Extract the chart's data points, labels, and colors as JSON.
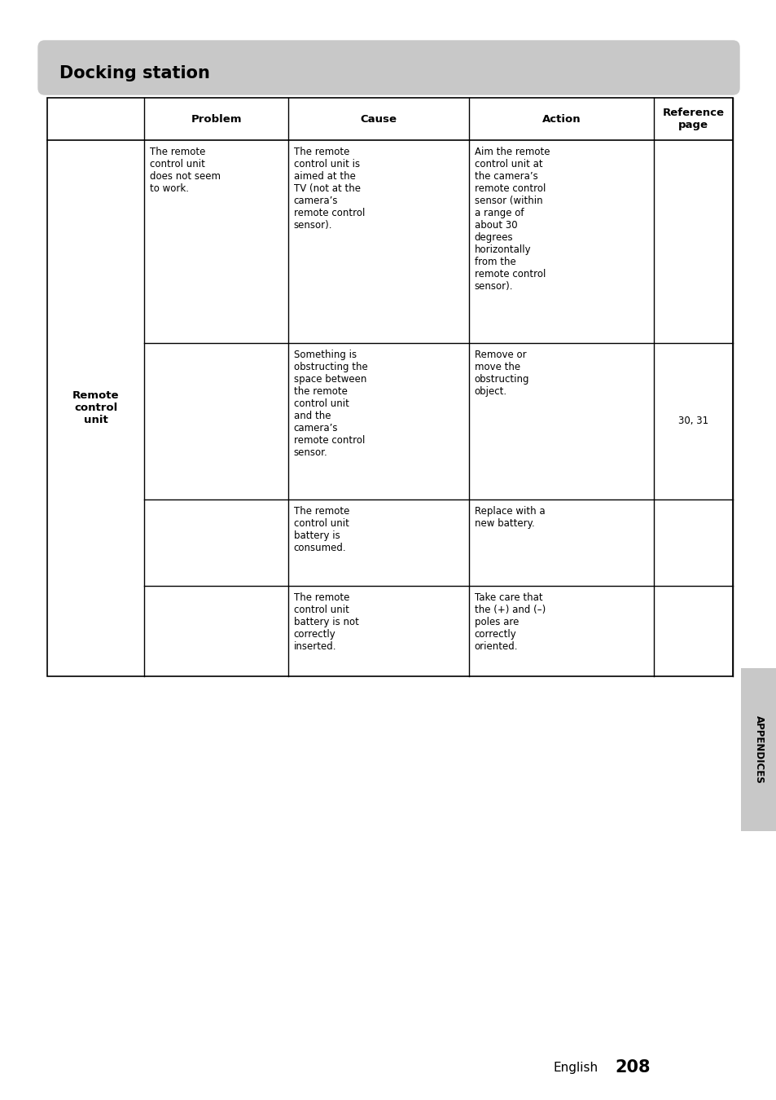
{
  "title": "Docking station",
  "title_bg_color": "#c8c8c8",
  "page_bg": "#ffffff",
  "header_cols": [
    "",
    "Problem",
    "Cause",
    "Action",
    "Reference\npage"
  ],
  "row_label": "Remote\ncontrol\nunit",
  "problem": "The remote\ncontrol unit\ndoes not seem\nto work.",
  "causes": [
    "The remote\ncontrol unit is\naimed at the\nTV (not at the\ncamera’s\nremote control\nsensor).",
    "Something is\nobstructing the\nspace between\nthe remote\ncontrol unit\nand the\ncamera’s\nremote control\nsensor.",
    "The remote\ncontrol unit\nbattery is\nconsumed.",
    "The remote\ncontrol unit\nbattery is not\ncorrectly\ninserted."
  ],
  "actions": [
    "Aim the remote\ncontrol unit at\nthe camera’s\nremote control\nsensor (within\na range of\nabout 30\ndegrees\nhorizontally\nfrom the\nremote control\nsensor).",
    "Remove or\nmove the\nobstructing\nobject.",
    "Replace with a\nnew battery.",
    "Take care that\nthe (+) and (–)\npoles are\ncorrectly\noriented."
  ],
  "ref_pages": [
    "",
    "30, 31",
    "",
    ""
  ],
  "appendices_label": "APPENDICES",
  "footer_text": "English",
  "footer_page": "208",
  "font_size_title": 15,
  "font_size_header": 9.5,
  "font_size_body": 8.5,
  "font_size_footer": 11,
  "font_size_page_num": 15
}
